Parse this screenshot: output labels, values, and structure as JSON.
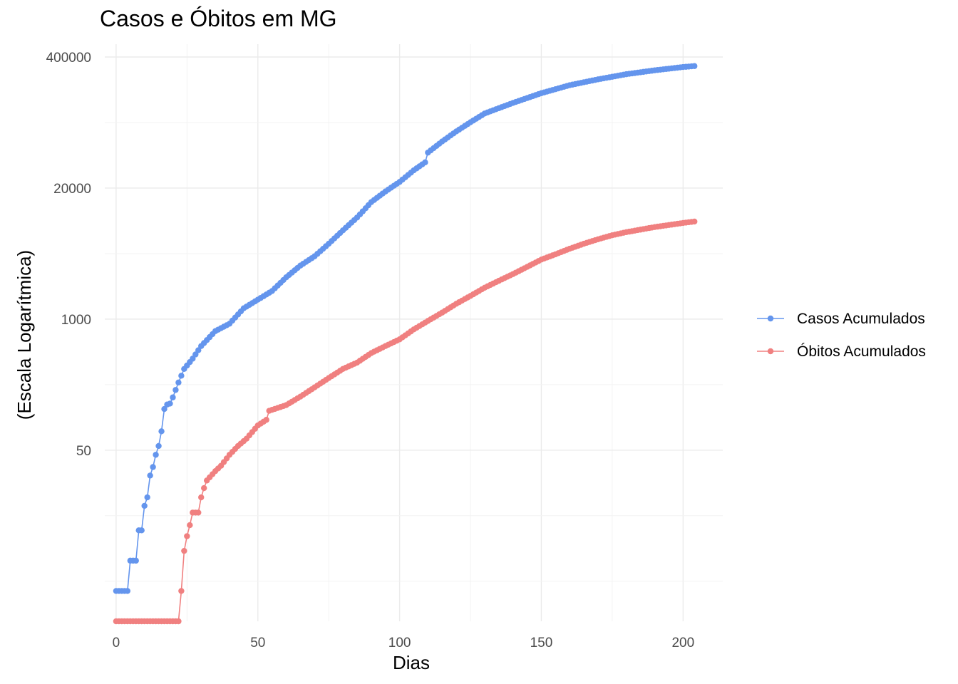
{
  "chart_data": {
    "type": "line",
    "title": "Casos e Óbitos em MG",
    "xlabel": "Dias",
    "ylabel": "(Escala Logarítmica)",
    "y_scale": "log",
    "xlim": [
      -4,
      214
    ],
    "ylim": [
      1,
      400000
    ],
    "x_ticks": [
      0,
      50,
      100,
      150,
      200
    ],
    "x_tick_labels": [
      "0",
      "50",
      "100",
      "150",
      "200"
    ],
    "y_ticks": [
      50,
      1000,
      20000,
      400000
    ],
    "y_tick_labels": [
      "50",
      "1000",
      "20000",
      "400000"
    ],
    "grid": true,
    "legend_position": "right",
    "series": [
      {
        "name": "Casos Acumulados",
        "color": "#6495ed",
        "x_range": [
          0,
          204
        ],
        "anchors": [
          [
            0,
            2
          ],
          [
            4,
            2
          ],
          [
            5,
            4
          ],
          [
            7,
            4
          ],
          [
            8,
            8
          ],
          [
            9,
            8
          ],
          [
            10,
            14
          ],
          [
            11,
            17
          ],
          [
            12,
            28
          ],
          [
            13,
            34
          ],
          [
            14,
            45
          ],
          [
            15,
            55
          ],
          [
            16,
            77
          ],
          [
            17,
            128
          ],
          [
            18,
            142
          ],
          [
            19,
            145
          ],
          [
            20,
            167
          ],
          [
            22,
            235
          ],
          [
            24,
            320
          ],
          [
            27,
            405
          ],
          [
            30,
            540
          ],
          [
            35,
            760
          ],
          [
            40,
            900
          ],
          [
            45,
            1280
          ],
          [
            50,
            1560
          ],
          [
            55,
            1900
          ],
          [
            60,
            2600
          ],
          [
            65,
            3400
          ],
          [
            70,
            4200
          ],
          [
            75,
            5600
          ],
          [
            80,
            7600
          ],
          [
            85,
            10200
          ],
          [
            90,
            14500
          ],
          [
            95,
            18500
          ],
          [
            100,
            23000
          ],
          [
            105,
            30000
          ],
          [
            109,
            36000
          ],
          [
            110,
            45000
          ],
          [
            115,
            58000
          ],
          [
            120,
            73000
          ],
          [
            125,
            90000
          ],
          [
            130,
            110000
          ],
          [
            140,
            140000
          ],
          [
            150,
            175000
          ],
          [
            160,
            210000
          ],
          [
            170,
            240000
          ],
          [
            180,
            270000
          ],
          [
            190,
            295000
          ],
          [
            200,
            318000
          ],
          [
            204,
            325000
          ]
        ]
      },
      {
        "name": "Óbitos Acumulados",
        "color": "#f08080",
        "x_range": [
          0,
          204
        ],
        "anchors": [
          [
            0,
            1
          ],
          [
            22,
            1
          ],
          [
            23,
            2
          ],
          [
            24,
            5
          ],
          [
            25,
            7
          ],
          [
            26,
            9
          ],
          [
            27,
            12
          ],
          [
            29,
            12
          ],
          [
            30,
            17
          ],
          [
            31,
            21
          ],
          [
            32,
            25
          ],
          [
            35,
            31
          ],
          [
            37,
            35
          ],
          [
            40,
            45
          ],
          [
            43,
            55
          ],
          [
            46,
            65
          ],
          [
            50,
            88
          ],
          [
            53,
            100
          ],
          [
            54,
            123
          ],
          [
            60,
            140
          ],
          [
            65,
            170
          ],
          [
            70,
            210
          ],
          [
            75,
            260
          ],
          [
            80,
            320
          ],
          [
            85,
            370
          ],
          [
            90,
            460
          ],
          [
            95,
            540
          ],
          [
            100,
            630
          ],
          [
            105,
            790
          ],
          [
            110,
            960
          ],
          [
            115,
            1160
          ],
          [
            120,
            1420
          ],
          [
            125,
            1700
          ],
          [
            130,
            2050
          ],
          [
            135,
            2400
          ],
          [
            140,
            2800
          ],
          [
            145,
            3300
          ],
          [
            150,
            3900
          ],
          [
            155,
            4400
          ],
          [
            160,
            5000
          ],
          [
            165,
            5600
          ],
          [
            170,
            6200
          ],
          [
            175,
            6800
          ],
          [
            180,
            7300
          ],
          [
            190,
            8200
          ],
          [
            200,
            9000
          ],
          [
            204,
            9300
          ]
        ]
      }
    ]
  }
}
